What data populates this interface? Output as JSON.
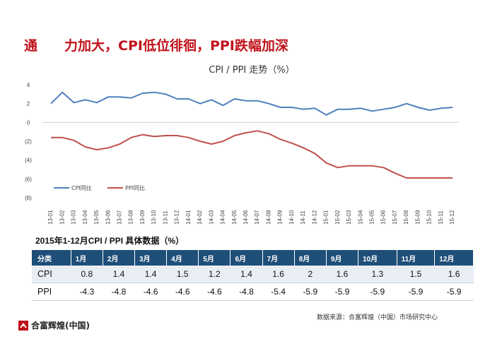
{
  "page": {
    "title": "通　　力加大，CPI低位徘徊，PPI跌幅加深"
  },
  "chart_data": {
    "type": "line",
    "title": "CPI / PPI 走势（%）",
    "xlabel": "",
    "ylabel": "",
    "ylim": [
      -8,
      4
    ],
    "yticks": [
      4,
      2,
      0,
      -2,
      -4,
      -6,
      -8
    ],
    "ytick_labels": [
      "4",
      "2",
      "0",
      "(2)",
      "(4)",
      "(6)",
      "(8)"
    ],
    "grid": false,
    "legend": "bottom-left",
    "x": [
      "13-01",
      "13-02",
      "13-03",
      "13-04",
      "13-05",
      "13-06",
      "13-07",
      "13-08",
      "13-09",
      "13-10",
      "13-11",
      "13-12",
      "14-01",
      "14-02",
      "14-03",
      "14-04",
      "14-05",
      "14-06",
      "14-07",
      "14-08",
      "14-09",
      "14-10",
      "14-11",
      "14-12",
      "15-01",
      "15-02",
      "15-03",
      "15-04",
      "15-05",
      "15-06",
      "15-07",
      "15-08",
      "15-09",
      "15-10",
      "15-11",
      "15-12"
    ],
    "series": [
      {
        "name": "CPI同比",
        "color": "#4f81bd",
        "values": [
          2.0,
          3.2,
          2.1,
          2.4,
          2.1,
          2.7,
          2.7,
          2.6,
          3.1,
          3.2,
          3.0,
          2.5,
          2.5,
          2.0,
          2.4,
          1.8,
          2.5,
          2.3,
          2.3,
          2.0,
          1.6,
          1.6,
          1.4,
          1.5,
          0.8,
          1.4,
          1.4,
          1.5,
          1.2,
          1.4,
          1.6,
          2.0,
          1.6,
          1.3,
          1.5,
          1.6
        ]
      },
      {
        "name": "PPI同比",
        "color": "#c0504d",
        "values": [
          -1.6,
          -1.6,
          -1.9,
          -2.6,
          -2.9,
          -2.7,
          -2.3,
          -1.6,
          -1.3,
          -1.5,
          -1.4,
          -1.4,
          -1.6,
          -2.0,
          -2.3,
          -2.0,
          -1.4,
          -1.1,
          -0.9,
          -1.2,
          -1.8,
          -2.2,
          -2.7,
          -3.3,
          -4.3,
          -4.8,
          -4.6,
          -4.6,
          -4.6,
          -4.8,
          -5.4,
          -5.9,
          -5.9,
          -5.9,
          -5.9,
          -5.9
        ]
      }
    ]
  },
  "table": {
    "title": "2015年1-12月CPI / PPI 具体数据（%）",
    "header_label": "分类",
    "months": [
      "1月",
      "2月",
      "3月",
      "4月",
      "5月",
      "6月",
      "7月",
      "8月",
      "9月",
      "10月",
      "11月",
      "12月"
    ],
    "rows": [
      {
        "label": "CPI",
        "values": [
          "0.8",
          "1.4",
          "1.4",
          "1.5",
          "1.2",
          "1.4",
          "1.6",
          "2",
          "1.6",
          "1.3",
          "1.5",
          "1.6"
        ]
      },
      {
        "label": "PPI",
        "values": [
          "-4.3",
          "-4.8",
          "-4.6",
          "-4.6",
          "-4.6",
          "-4.8",
          "-5.4",
          "-5.9",
          "-5.9",
          "-5.9",
          "-5.9",
          "-5.9"
        ]
      }
    ]
  },
  "footer": {
    "source": "数据来源：合富辉煌（中国）市场研究中心",
    "logo_text": "合富辉煌(中国)",
    "logo_color": "#c0121b"
  }
}
